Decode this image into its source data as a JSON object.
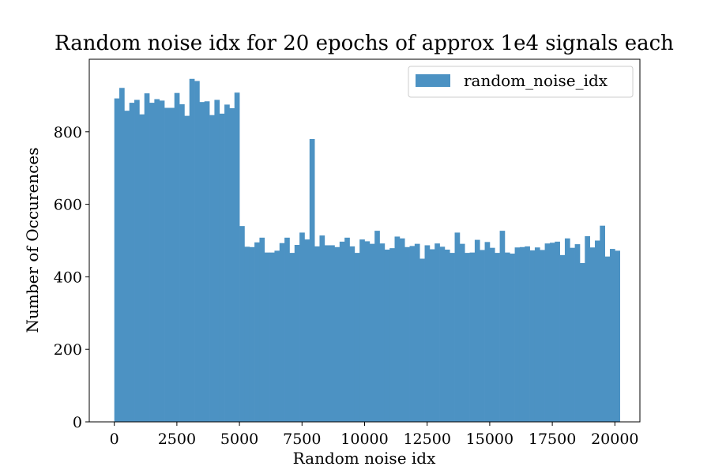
{
  "chart_data": {
    "type": "bar",
    "title": "Random noise idx for 20 epochs of approx 1e4 signals each",
    "xlabel": "Random noise idx",
    "ylabel": "Number of Occurences",
    "xlim": [
      -1000,
      21000
    ],
    "ylim": [
      0,
      1000
    ],
    "xticks": [
      0,
      2500,
      5000,
      7500,
      10000,
      12500,
      15000,
      17500,
      20000
    ],
    "yticks": [
      0,
      200,
      400,
      600,
      800
    ],
    "bin_start": 0,
    "bin_width": 200,
    "series": [
      {
        "name": "random_noise_idx",
        "color": "#4c92c3",
        "values": [
          892,
          921,
          858,
          880,
          888,
          848,
          906,
          880,
          890,
          886,
          866,
          866,
          907,
          876,
          844,
          946,
          940,
          882,
          884,
          846,
          888,
          850,
          875,
          865,
          908,
          540,
          483,
          482,
          495,
          508,
          467,
          467,
          472,
          493,
          508,
          466,
          488,
          522,
          503,
          780,
          484,
          514,
          487,
          487,
          482,
          497,
          508,
          484,
          466,
          503,
          498,
          491,
          527,
          492,
          475,
          479,
          511,
          506,
          482,
          485,
          491,
          450,
          487,
          476,
          492,
          483,
          475,
          466,
          522,
          491,
          466,
          467,
          502,
          474,
          496,
          480,
          466,
          527,
          467,
          464,
          481,
          482,
          484,
          473,
          481,
          474,
          492,
          494,
          497,
          460,
          506,
          480,
          490,
          438,
          512,
          481,
          500,
          541,
          456,
          477,
          472
        ]
      }
    ],
    "legend": {
      "position": "top-right"
    },
    "grid": false
  }
}
